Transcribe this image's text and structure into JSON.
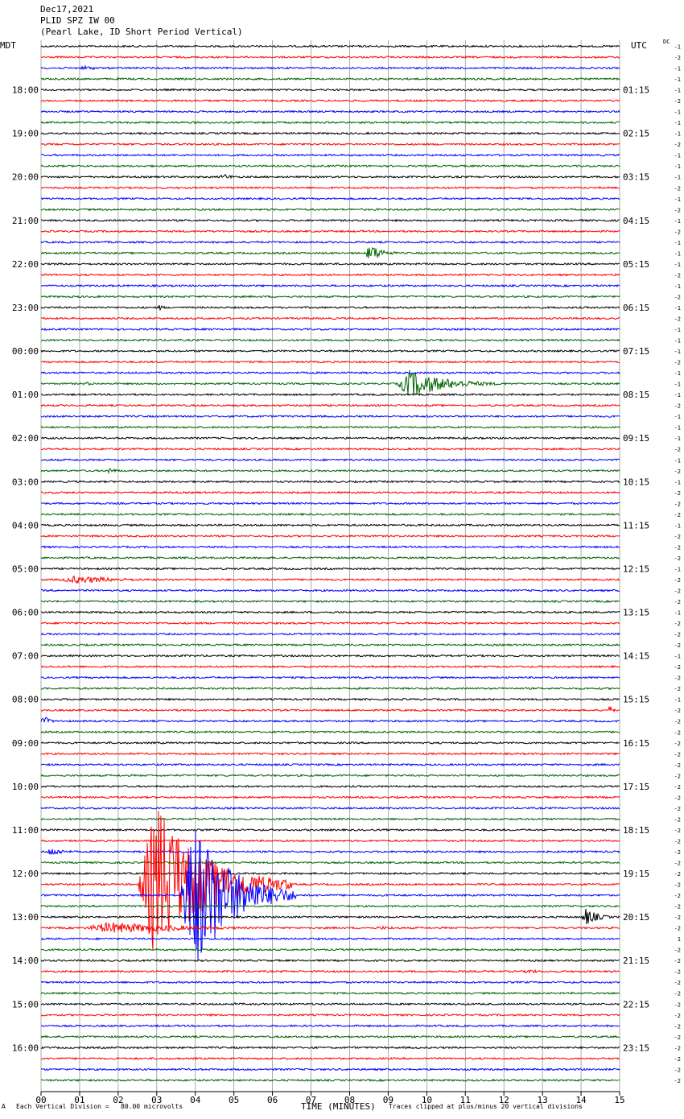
{
  "header": {
    "date": "Dec17,2021",
    "station": "PLID SPZ IW 00",
    "description": "(Pearl Lake, ID Short Period Vertical)"
  },
  "corner": {
    "left": "MDT",
    "right": "UTC",
    "dc": "DC"
  },
  "footer": {
    "scale": "Each Vertical Division =   80.00 microvolts",
    "clip": "Traces clipped at plus/minus 20 vertical divisions",
    "mark": "A"
  },
  "chart_data": {
    "type": "line",
    "title": "",
    "xlabel": "TIME (MINUTES)",
    "x_ticks": [
      "00",
      "01",
      "02",
      "03",
      "04",
      "05",
      "06",
      "07",
      "08",
      "09",
      "10",
      "11",
      "12",
      "13",
      "14",
      "15"
    ],
    "xlim": [
      0,
      15
    ],
    "trace_count": 96,
    "trace_interval_minutes": 15,
    "first_trace_local": "17:00",
    "trace_colors": [
      "#000000",
      "#ff0000",
      "#0000ff",
      "#006400"
    ],
    "left_hour_labels": [
      "18:00",
      "19:00",
      "20:00",
      "21:00",
      "22:00",
      "23:00",
      "00:00",
      "01:00",
      "02:00",
      "03:00",
      "04:00",
      "05:00",
      "06:00",
      "07:00",
      "08:00",
      "09:00",
      "10:00",
      "11:00",
      "12:00",
      "13:00",
      "14:00",
      "15:00",
      "16:00"
    ],
    "right_hour_labels": [
      "01:15",
      "02:15",
      "03:15",
      "04:15",
      "05:15",
      "06:15",
      "07:15",
      "08:15",
      "09:15",
      "10:15",
      "11:15",
      "12:15",
      "13:15",
      "14:15",
      "15:15",
      "16:15",
      "17:15",
      "18:15",
      "19:15",
      "20:15",
      "21:15",
      "22:15",
      "23:15"
    ],
    "dc_offsets": [
      "-1",
      "-2",
      "-1",
      "-1",
      "-1",
      "-2",
      "-1",
      "-1",
      "-1",
      "-2",
      "-1",
      "-1",
      "-1",
      "-2",
      "-1",
      "-2",
      "-1",
      "-2",
      "-1",
      "-1",
      "-1",
      "-2",
      "-1",
      "-2",
      "-1",
      "-2",
      "-1",
      "-1",
      "-1",
      "-2",
      "-1",
      "-1",
      "-1",
      "-2",
      "-1",
      "-1",
      "-1",
      "-2",
      "-1",
      "-2",
      "-1",
      "-2",
      "-2",
      "-2",
      "-1",
      "-2",
      "-2",
      "-2",
      "-1",
      "-2",
      "-2",
      "-2",
      "-1",
      "-2",
      "-2",
      "-2",
      "-1",
      "-2",
      "-2",
      "-2",
      "-1",
      "-2",
      "-2",
      "-2",
      "-2",
      "-2",
      "-2",
      "-2",
      "-2",
      "-2",
      "-2",
      "-2",
      "-2",
      "-2",
      "-2",
      "-2",
      "-2",
      "-2",
      "-2",
      "-2",
      "-2",
      "-2",
      "1",
      "-2",
      "-2",
      "-2",
      "-2",
      "-2",
      "-2",
      "-2",
      "-2",
      "-2",
      "-2",
      "-2",
      "-2",
      "-2"
    ],
    "events": [
      {
        "trace": 2,
        "start_min": 1.0,
        "dur_min": 1.0,
        "amp_div": 0.6
      },
      {
        "trace": 7,
        "start_min": 13.2,
        "dur_min": 0.2,
        "amp_div": 0.3
      },
      {
        "trace": 12,
        "start_min": 4.6,
        "dur_min": 1.0,
        "amp_div": 0.7
      },
      {
        "trace": 19,
        "start_min": 8.4,
        "dur_min": 1.0,
        "amp_div": 2.2
      },
      {
        "trace": 24,
        "start_min": 3.0,
        "dur_min": 0.6,
        "amp_div": 0.6
      },
      {
        "trace": 31,
        "start_min": 9.2,
        "dur_min": 3.0,
        "amp_div": 3.2
      },
      {
        "trace": 31,
        "start_min": 1.0,
        "dur_min": 1.5,
        "amp_div": 0.4
      },
      {
        "trace": 39,
        "start_min": 1.7,
        "dur_min": 0.5,
        "amp_div": 0.9
      },
      {
        "trace": 49,
        "start_min": 0.4,
        "dur_min": 4.0,
        "amp_div": 0.9
      },
      {
        "trace": 55,
        "start_min": 10.5,
        "dur_min": 0.5,
        "amp_div": 0.4
      },
      {
        "trace": 61,
        "start_min": 14.7,
        "dur_min": 0.3,
        "amp_div": 1.2
      },
      {
        "trace": 62,
        "start_min": 0.0,
        "dur_min": 0.5,
        "amp_div": 1.4
      },
      {
        "trace": 66,
        "start_min": 4.9,
        "dur_min": 0.3,
        "amp_div": 0.3
      },
      {
        "trace": 74,
        "start_min": 0.1,
        "dur_min": 1.2,
        "amp_div": 1.0
      },
      {
        "trace": 77,
        "start_min": 2.5,
        "dur_min": 4.0,
        "amp_div": 20
      },
      {
        "trace": 78,
        "start_min": 3.6,
        "dur_min": 3.0,
        "amp_div": 20
      },
      {
        "trace": 80,
        "start_min": 14.0,
        "dur_min": 1.0,
        "amp_div": 2.0
      },
      {
        "trace": 81,
        "start_min": 1.0,
        "dur_min": 6.5,
        "amp_div": 1.3
      },
      {
        "trace": 81,
        "start_min": 8.5,
        "dur_min": 2.5,
        "amp_div": 0.4
      },
      {
        "trace": 85,
        "start_min": 12.5,
        "dur_min": 1.0,
        "amp_div": 0.6
      },
      {
        "trace": 88,
        "start_min": 5.0,
        "dur_min": 0.3,
        "amp_div": 0.4
      }
    ]
  }
}
